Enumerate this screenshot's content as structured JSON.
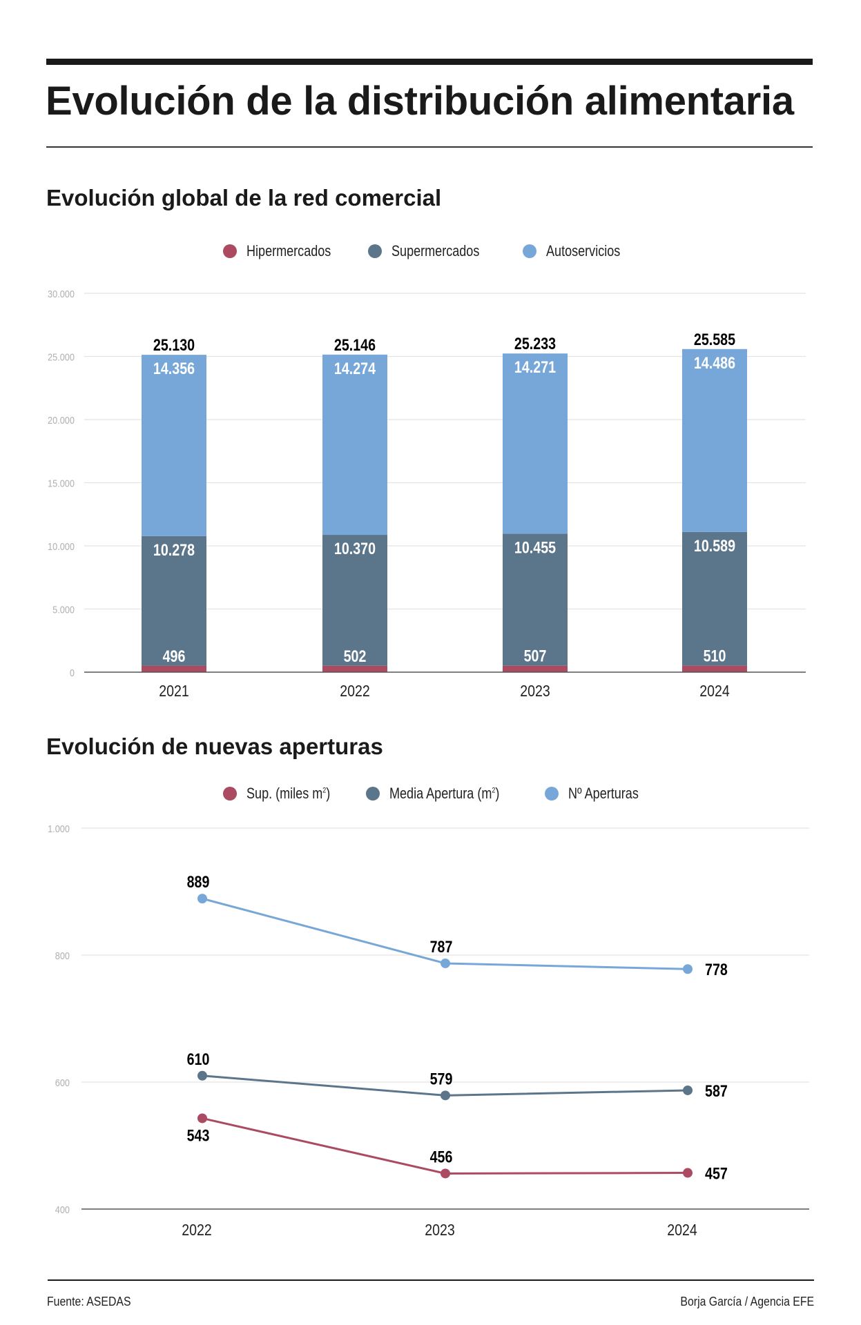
{
  "header": {
    "title": "Evolución de la distribución alimentaria"
  },
  "colors": {
    "hipermercados": "#ab4a60",
    "supermercados": "#5b758b",
    "autoservicios": "#77a7d8",
    "grid": "#e3e3e3",
    "axis": "#555555",
    "tick_label": "#b0b0b0"
  },
  "chart_data": [
    {
      "type": "bar",
      "stacked": true,
      "title": "Evolución global de la red comercial",
      "xlabel": "",
      "ylabel": "",
      "categories": [
        "2021",
        "2022",
        "2023",
        "2024"
      ],
      "series": [
        {
          "name": "Hipermercados",
          "key": "hipermercados",
          "values": [
            496,
            502,
            507,
            510
          ],
          "labels": [
            "496",
            "502",
            "507",
            "510"
          ]
        },
        {
          "name": "Supermercados",
          "key": "supermercados",
          "values": [
            10278,
            10370,
            10455,
            10589
          ],
          "labels": [
            "10.278",
            "10.370",
            "10.455",
            "10.589"
          ]
        },
        {
          "name": "Autoservicios",
          "key": "autoservicios",
          "values": [
            14356,
            14274,
            14271,
            14486
          ],
          "labels": [
            "14.356",
            "14.274",
            "14.271",
            "14.486"
          ]
        }
      ],
      "totals": [
        25130,
        25146,
        25233,
        25585
      ],
      "total_labels": [
        "25.130",
        "25.146",
        "25.233",
        "25.585"
      ],
      "ylim": [
        0,
        30000
      ],
      "yticks": [
        0,
        5000,
        10000,
        15000,
        20000,
        25000,
        30000
      ],
      "ytick_labels": [
        "0",
        "5.000",
        "10.000",
        "15.000",
        "20.000",
        "25.000",
        "30.000"
      ],
      "grid": true,
      "legend": "top-center"
    },
    {
      "type": "line",
      "title": "Evolución de nuevas aperturas",
      "xlabel": "",
      "ylabel": "",
      "x": [
        "2022",
        "2023",
        "2024"
      ],
      "series": [
        {
          "name": "Sup. (miles m",
          "sup": "2",
          "suffix": ")",
          "key": "hipermercados",
          "values": [
            543,
            456,
            457
          ],
          "label_pos": [
            "below",
            "above",
            "right"
          ]
        },
        {
          "name": "Media Apertura (m",
          "sup": "2",
          "suffix": ")",
          "key": "supermercados",
          "values": [
            610,
            579,
            587
          ],
          "label_pos": [
            "above",
            "above",
            "right"
          ]
        },
        {
          "name": "Nº Aperturas",
          "sup": "",
          "suffix": "",
          "key": "autoservicios",
          "values": [
            889,
            787,
            778
          ],
          "label_pos": [
            "above",
            "above",
            "right"
          ]
        }
      ],
      "ylim": [
        400,
        1000
      ],
      "yticks": [
        400,
        600,
        800,
        1000
      ],
      "ytick_labels": [
        "400",
        "600",
        "800",
        "1.000"
      ],
      "grid": true,
      "legend": "top-center"
    }
  ],
  "footer": {
    "source": "Fuente: ASEDAS",
    "credit": "Borja García / Agencia EFE"
  }
}
